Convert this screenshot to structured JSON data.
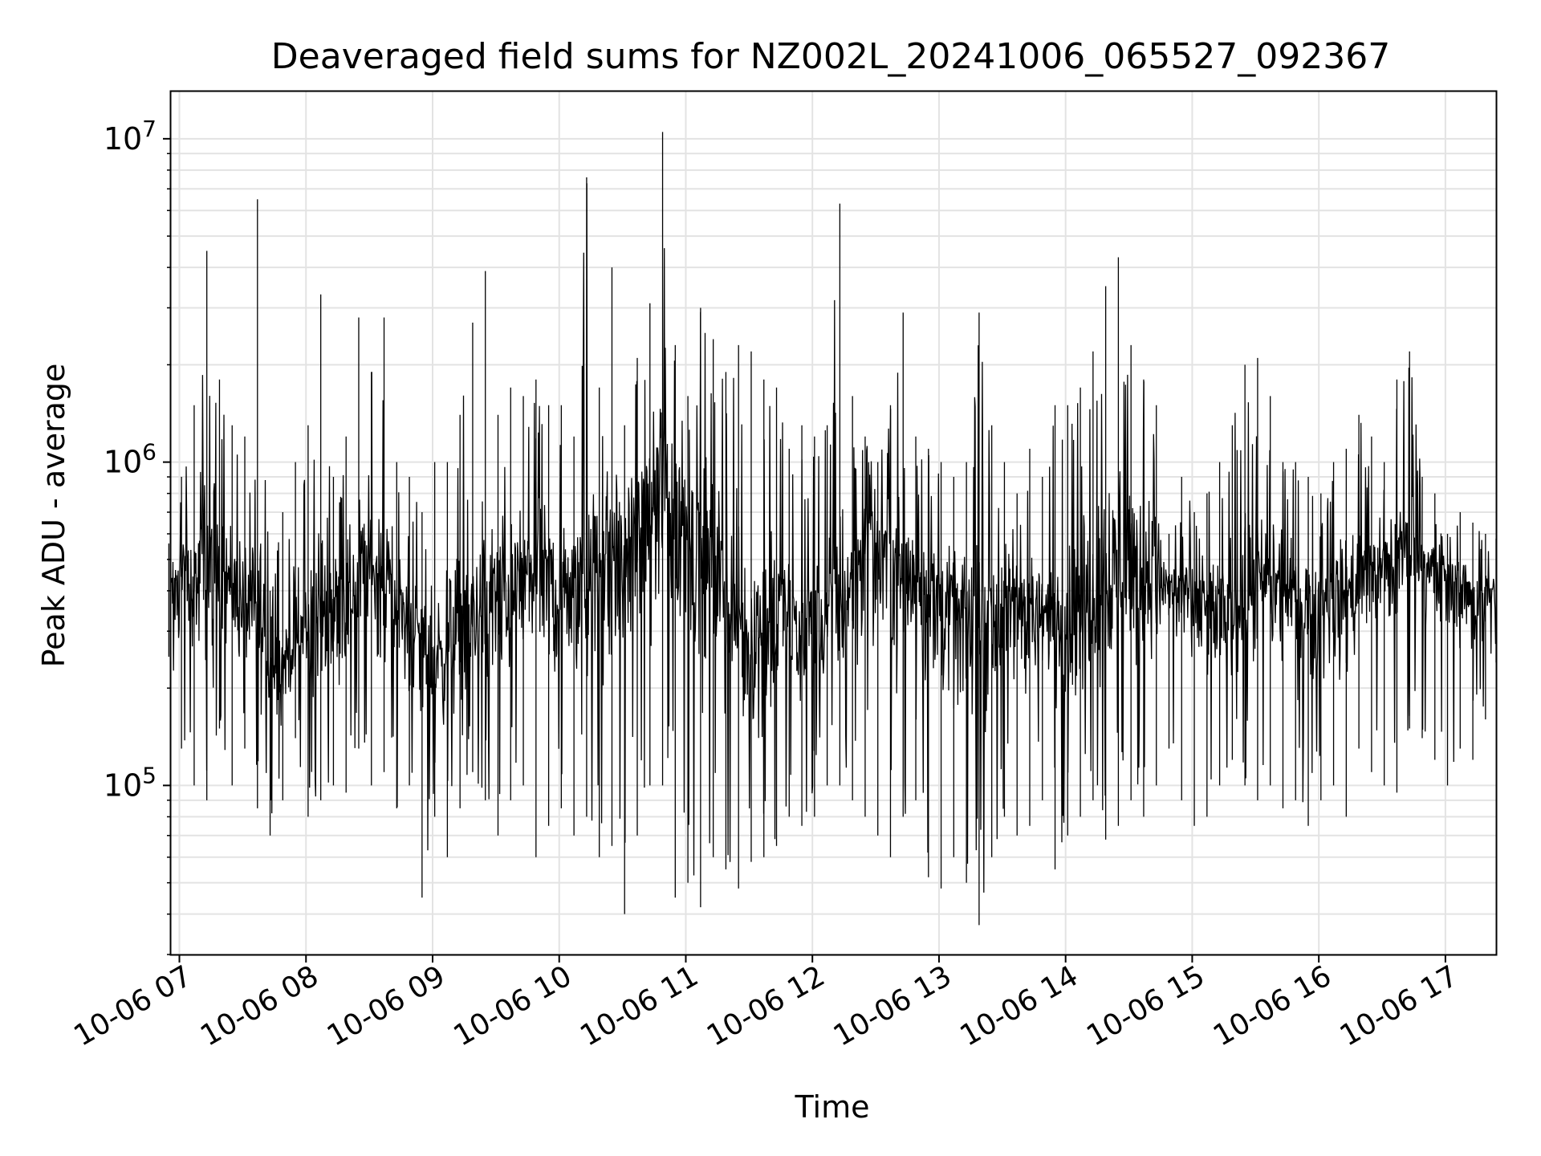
{
  "chart_data": {
    "type": "line",
    "title": "Deaveraged field sums for NZ002L_20241006_065527_092367",
    "xlabel": "Time",
    "ylabel": "Peak ADU - average",
    "yscale": "log",
    "ylim": [
      30000,
      14000000
    ],
    "xlim": [
      "2024-10-06 06:56",
      "2024-10-06 17:24"
    ],
    "grid": true,
    "line_color": "#000000",
    "x_ticks": [
      {
        "t": "2024-10-06 07:00",
        "label": "10-06 07"
      },
      {
        "t": "2024-10-06 08:00",
        "label": "10-06 08"
      },
      {
        "t": "2024-10-06 09:00",
        "label": "10-06 09"
      },
      {
        "t": "2024-10-06 10:00",
        "label": "10-06 10"
      },
      {
        "t": "2024-10-06 11:00",
        "label": "10-06 11"
      },
      {
        "t": "2024-10-06 12:00",
        "label": "10-06 12"
      },
      {
        "t": "2024-10-06 13:00",
        "label": "10-06 13"
      },
      {
        "t": "2024-10-06 14:00",
        "label": "10-06 14"
      },
      {
        "t": "2024-10-06 15:00",
        "label": "10-06 15"
      },
      {
        "t": "2024-10-06 16:00",
        "label": "10-06 16"
      },
      {
        "t": "2024-10-06 17:00",
        "label": "10-06 17"
      }
    ],
    "y_ticks": [
      {
        "value": 100000,
        "base": "10",
        "exp": "5"
      },
      {
        "value": 1000000,
        "base": "10",
        "exp": "6"
      },
      {
        "value": 10000000,
        "base": "10",
        "exp": "7"
      }
    ],
    "series": [
      {
        "x": [
          "2024-10-06 06:55",
          "2024-10-06 07:01",
          "2024-10-06 07:07",
          "2024-10-06 07:13",
          "2024-10-06 07:19",
          "2024-10-06 07:25",
          "2024-10-06 07:31",
          "2024-10-06 07:37",
          "2024-10-06 07:43",
          "2024-10-06 07:49",
          "2024-10-06 07:55",
          "2024-10-06 08:01",
          "2024-10-06 08:07",
          "2024-10-06 08:13",
          "2024-10-06 08:19",
          "2024-10-06 08:25",
          "2024-10-06 08:31",
          "2024-10-06 08:37",
          "2024-10-06 08:43",
          "2024-10-06 08:49",
          "2024-10-06 08:55",
          "2024-10-06 09:01",
          "2024-10-06 09:07",
          "2024-10-06 09:13",
          "2024-10-06 09:19",
          "2024-10-06 09:25",
          "2024-10-06 09:31",
          "2024-10-06 09:37",
          "2024-10-06 09:43",
          "2024-10-06 09:49",
          "2024-10-06 09:55",
          "2024-10-06 10:01",
          "2024-10-06 10:07",
          "2024-10-06 10:13",
          "2024-10-06 10:19",
          "2024-10-06 10:25",
          "2024-10-06 10:31",
          "2024-10-06 10:37",
          "2024-10-06 10:43",
          "2024-10-06 10:49",
          "2024-10-06 10:55",
          "2024-10-06 11:01",
          "2024-10-06 11:07",
          "2024-10-06 11:13",
          "2024-10-06 11:19",
          "2024-10-06 11:25",
          "2024-10-06 11:31",
          "2024-10-06 11:37",
          "2024-10-06 11:43",
          "2024-10-06 11:49",
          "2024-10-06 11:55",
          "2024-10-06 12:01",
          "2024-10-06 12:07",
          "2024-10-06 12:13",
          "2024-10-06 12:19",
          "2024-10-06 12:25",
          "2024-10-06 12:31",
          "2024-10-06 12:37",
          "2024-10-06 12:43",
          "2024-10-06 12:49",
          "2024-10-06 12:55",
          "2024-10-06 13:01",
          "2024-10-06 13:07",
          "2024-10-06 13:13",
          "2024-10-06 13:19",
          "2024-10-06 13:25",
          "2024-10-06 13:31",
          "2024-10-06 13:37",
          "2024-10-06 13:43",
          "2024-10-06 13:49",
          "2024-10-06 13:55",
          "2024-10-06 14:01",
          "2024-10-06 14:07",
          "2024-10-06 14:13",
          "2024-10-06 14:19",
          "2024-10-06 14:25",
          "2024-10-06 14:31",
          "2024-10-06 14:37",
          "2024-10-06 14:43",
          "2024-10-06 14:49",
          "2024-10-06 14:55",
          "2024-10-06 15:01",
          "2024-10-06 15:07",
          "2024-10-06 15:13",
          "2024-10-06 15:19",
          "2024-10-06 15:25",
          "2024-10-06 15:31",
          "2024-10-06 15:37",
          "2024-10-06 15:43",
          "2024-10-06 15:49",
          "2024-10-06 15:55",
          "2024-10-06 16:01",
          "2024-10-06 16:07",
          "2024-10-06 16:13",
          "2024-10-06 16:19",
          "2024-10-06 16:25",
          "2024-10-06 16:31",
          "2024-10-06 16:37",
          "2024-10-06 16:43",
          "2024-10-06 16:49",
          "2024-10-06 16:55",
          "2024-10-06 17:01",
          "2024-10-06 17:07",
          "2024-10-06 17:13",
          "2024-10-06 17:19",
          "2024-10-06 17:24"
        ],
        "ymax": [
          560000,
          900000,
          1500000,
          4500000,
          1800000,
          1300000,
          1200000,
          6500000,
          400000,
          700000,
          1000000,
          1300000,
          3300000,
          900000,
          1200000,
          2800000,
          1900000,
          2800000,
          1000000,
          900000,
          700000,
          1000000,
          1000000,
          1400000,
          2700000,
          3900000,
          1400000,
          1700000,
          1600000,
          1800000,
          1500000,
          1500000,
          1200000,
          7600000,
          1700000,
          4000000,
          1300000,
          2100000,
          3100000,
          10500000,
          2300000,
          1600000,
          3000000,
          2400000,
          1900000,
          2300000,
          2200000,
          1800000,
          1700000,
          1100000,
          1300000,
          1200000,
          1300000,
          6300000,
          1600000,
          1200000,
          1000000,
          1500000,
          2900000,
          1200000,
          1100000,
          1000000,
          900000,
          1000000,
          2900000,
          1300000,
          1000000,
          800000,
          1100000,
          900000,
          1500000,
          1500000,
          1700000,
          2200000,
          3500000,
          4300000,
          2300000,
          1800000,
          1500000,
          600000,
          900000,
          700000,
          800000,
          1000000,
          1300000,
          2000000,
          2100000,
          1600000,
          1000000,
          1000000,
          900000,
          800000,
          1000000,
          1100000,
          1400000,
          1200000,
          1000000,
          1800000,
          2200000,
          900000,
          800000,
          600000,
          700000,
          650000,
          600000,
          580000
        ],
        "ymin": [
          250000,
          130000,
          100000,
          90000,
          150000,
          100000,
          130000,
          85000,
          70000,
          90000,
          140000,
          80000,
          90000,
          100000,
          95000,
          130000,
          100000,
          110000,
          85000,
          100000,
          45000,
          80000,
          60000,
          85000,
          110000,
          90000,
          70000,
          90000,
          100000,
          60000,
          75000,
          85000,
          70000,
          80000,
          60000,
          65000,
          40000,
          70000,
          100000,
          100000,
          45000,
          50000,
          42000,
          60000,
          55000,
          48000,
          58000,
          60000,
          65000,
          80000,
          75000,
          80000,
          100000,
          100000,
          90000,
          80000,
          70000,
          60000,
          80000,
          90000,
          52000,
          48000,
          60000,
          50000,
          37000,
          60000,
          80000,
          70000,
          75000,
          90000,
          55000,
          70000,
          80000,
          90000,
          68000,
          75000,
          90000,
          80000,
          100000,
          130000,
          90000,
          75000,
          80000,
          100000,
          120000,
          100000,
          90000,
          100000,
          85000,
          90000,
          75000,
          90000,
          100000,
          80000,
          130000,
          110000,
          100000,
          95000,
          150000,
          140000,
          120000,
          100000,
          130000,
          120000,
          160000,
          240000
        ],
        "yavg": [
          400000,
          450000,
          420000,
          450000,
          480000,
          420000,
          350000,
          330000,
          220000,
          230000,
          280000,
          300000,
          330000,
          360000,
          380000,
          450000,
          480000,
          420000,
          380000,
          300000,
          280000,
          250000,
          280000,
          300000,
          320000,
          350000,
          380000,
          400000,
          420000,
          450000,
          430000,
          380000,
          400000,
          420000,
          450000,
          500000,
          550000,
          600000,
          700000,
          800000,
          750000,
          650000,
          550000,
          480000,
          380000,
          320000,
          280000,
          300000,
          320000,
          350000,
          300000,
          280000,
          320000,
          350000,
          450000,
          600000,
          550000,
          500000,
          480000,
          450000,
          400000,
          380000,
          350000,
          320000,
          300000,
          330000,
          350000,
          380000,
          350000,
          330000,
          350000,
          320000,
          350000,
          400000,
          450000,
          480000,
          500000,
          480000,
          450000,
          420000,
          400000,
          380000,
          350000,
          330000,
          350000,
          380000,
          400000,
          420000,
          400000,
          380000,
          370000,
          360000,
          380000,
          400000,
          420000,
          450000,
          480000,
          500000,
          520000,
          500000,
          480000,
          450000,
          420000,
          400000,
          380000,
          400000
        ]
      }
    ]
  }
}
